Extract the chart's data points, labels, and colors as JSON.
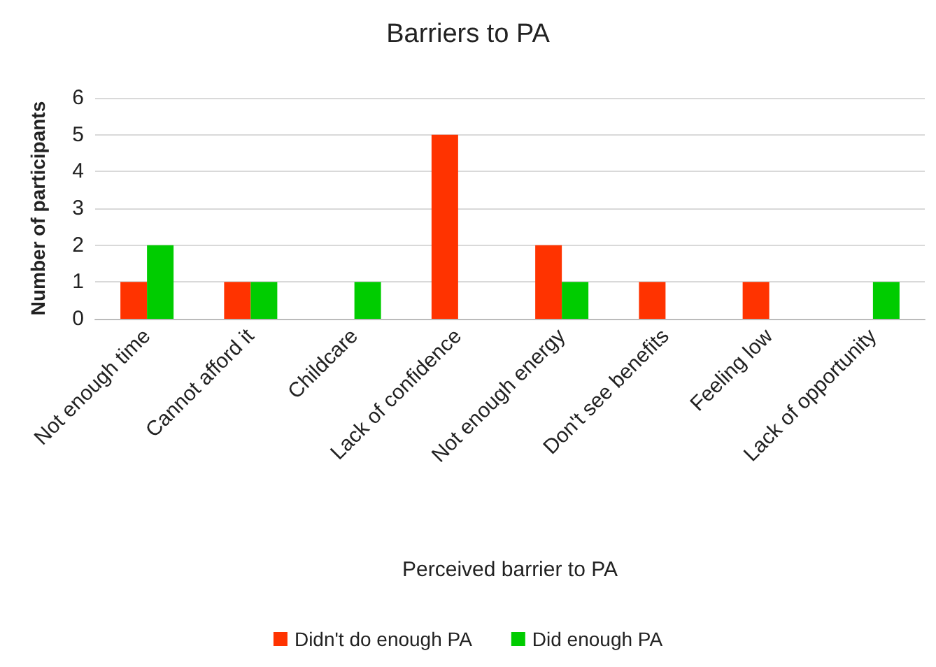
{
  "chart_data": {
    "type": "bar",
    "title": "Barriers to PA",
    "xlabel": "Perceived barrier to PA",
    "ylabel": "Number of participants",
    "categories": [
      "Not enough time",
      "Cannot afford it",
      "Childcare",
      "Lack of confidence",
      "Not enough energy",
      "Don't see benefits",
      "Feeling low",
      "Lack of opportunity"
    ],
    "series": [
      {
        "name": "Didn't do enough PA",
        "color": "#ff3300",
        "values": [
          1,
          1,
          0,
          5,
          2,
          1,
          1,
          0
        ]
      },
      {
        "name": "Did enough PA",
        "color": "#00cc00",
        "values": [
          2,
          1,
          1,
          0,
          1,
          0,
          0,
          1
        ]
      }
    ],
    "ylim": [
      0,
      6
    ],
    "yticks": [
      0,
      1,
      2,
      3,
      4,
      5,
      6
    ],
    "grid": "y",
    "legend": "bottom"
  }
}
